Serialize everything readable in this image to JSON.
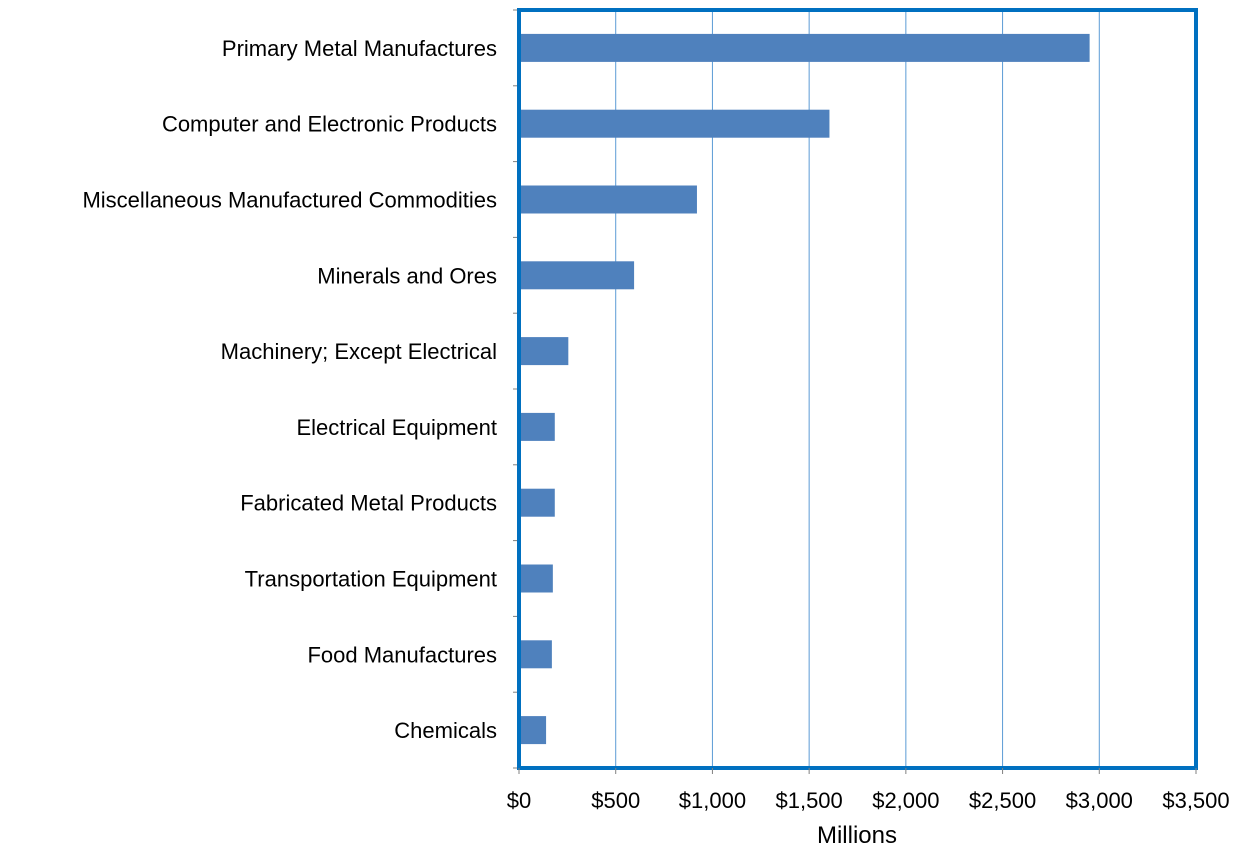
{
  "chart_data": {
    "type": "bar",
    "orientation": "horizontal",
    "categories": [
      "Primary Metal Manufactures",
      "Computer and Electronic Products",
      "Miscellaneous Manufactured Commodities",
      "Minerals and Ores",
      "Machinery; Except Electrical",
      "Electrical Equipment",
      "Fabricated Metal Products",
      "Transportation Equipment",
      "Food Manufactures",
      "Chemicals"
    ],
    "values": [
      2950,
      1605,
      920,
      595,
      255,
      185,
      185,
      175,
      170,
      140
    ],
    "xlabel": "Millions",
    "ylabel": "",
    "xlim": [
      0,
      3500
    ],
    "xticks": [
      0,
      500,
      1000,
      1500,
      2000,
      2500,
      3000,
      3500
    ],
    "xtick_labels": [
      "$0",
      "$500",
      "$1,000",
      "$1,500",
      "$2,000",
      "$2,500",
      "$3,000",
      "$3,500"
    ],
    "grid": "vertical",
    "legend": "none",
    "colors": {
      "bar": "#4f81bd",
      "frame": "#0070c0",
      "gridline": "#5b9bd5"
    }
  }
}
